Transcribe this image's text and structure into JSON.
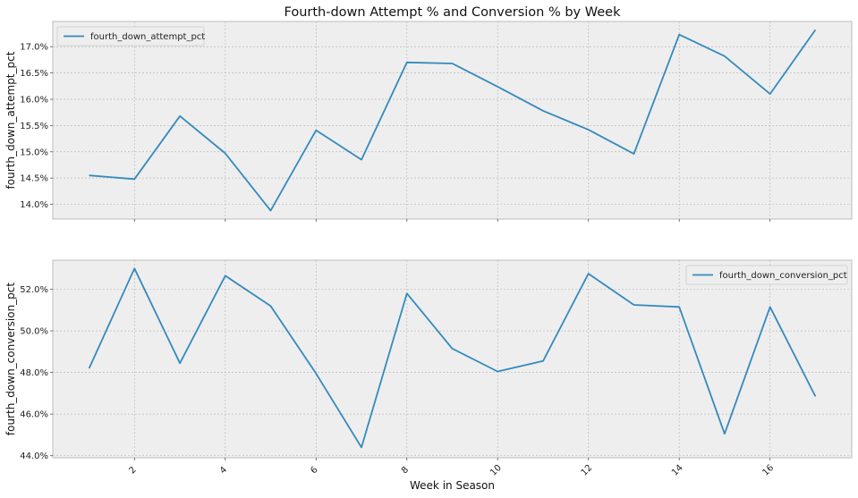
{
  "chart_data": {
    "type": "line",
    "title": "Fourth-down Attempt % and Conversion % by Week",
    "xlabel": "Week in Season",
    "x": [
      1,
      2,
      3,
      4,
      5,
      6,
      7,
      8,
      9,
      10,
      11,
      12,
      13,
      14,
      15,
      16,
      17
    ],
    "xlim": [
      0.2,
      17.8
    ],
    "xticks": [
      2,
      4,
      6,
      8,
      10,
      12,
      14,
      16
    ],
    "grid": true,
    "colors": {
      "line": "#348abd",
      "panel_bg": "#eeeeee",
      "grid": "#bbbbbb",
      "frame": "#bcbcbc"
    },
    "panels": [
      {
        "ylabel": "fourth_down_attempt_pct",
        "ylim": [
          13.72,
          17.48
        ],
        "yticks": [
          14.0,
          14.5,
          15.0,
          15.5,
          16.0,
          16.5,
          17.0
        ],
        "ytick_labels": [
          "14.0%",
          "14.5%",
          "15.0%",
          "15.5%",
          "16.0%",
          "16.5%",
          "17.0%"
        ],
        "legend_position": "top-left",
        "series": [
          {
            "name": "fourth_down_attempt_pct",
            "values": [
              14.55,
              14.48,
              15.68,
              14.97,
              13.88,
              15.41,
              14.85,
              16.7,
              16.68,
              16.24,
              15.78,
              15.42,
              14.96,
              17.23,
              16.82,
              16.1,
              17.32
            ]
          }
        ]
      },
      {
        "ylabel": "fourth_down_conversion_pct",
        "ylim": [
          43.9,
          53.4
        ],
        "yticks": [
          44.0,
          46.0,
          48.0,
          50.0,
          52.0
        ],
        "ytick_labels": [
          "44.0%",
          "46.0%",
          "48.0%",
          "50.0%",
          "52.0%"
        ],
        "legend_position": "top-right",
        "series": [
          {
            "name": "fourth_down_conversion_pct",
            "values": [
              48.2,
              53.0,
              48.45,
              52.65,
              51.2,
              47.95,
              44.4,
              51.8,
              49.15,
              48.05,
              48.55,
              52.75,
              51.25,
              51.15,
              45.05,
              51.15,
              46.85
            ]
          }
        ]
      }
    ]
  }
}
